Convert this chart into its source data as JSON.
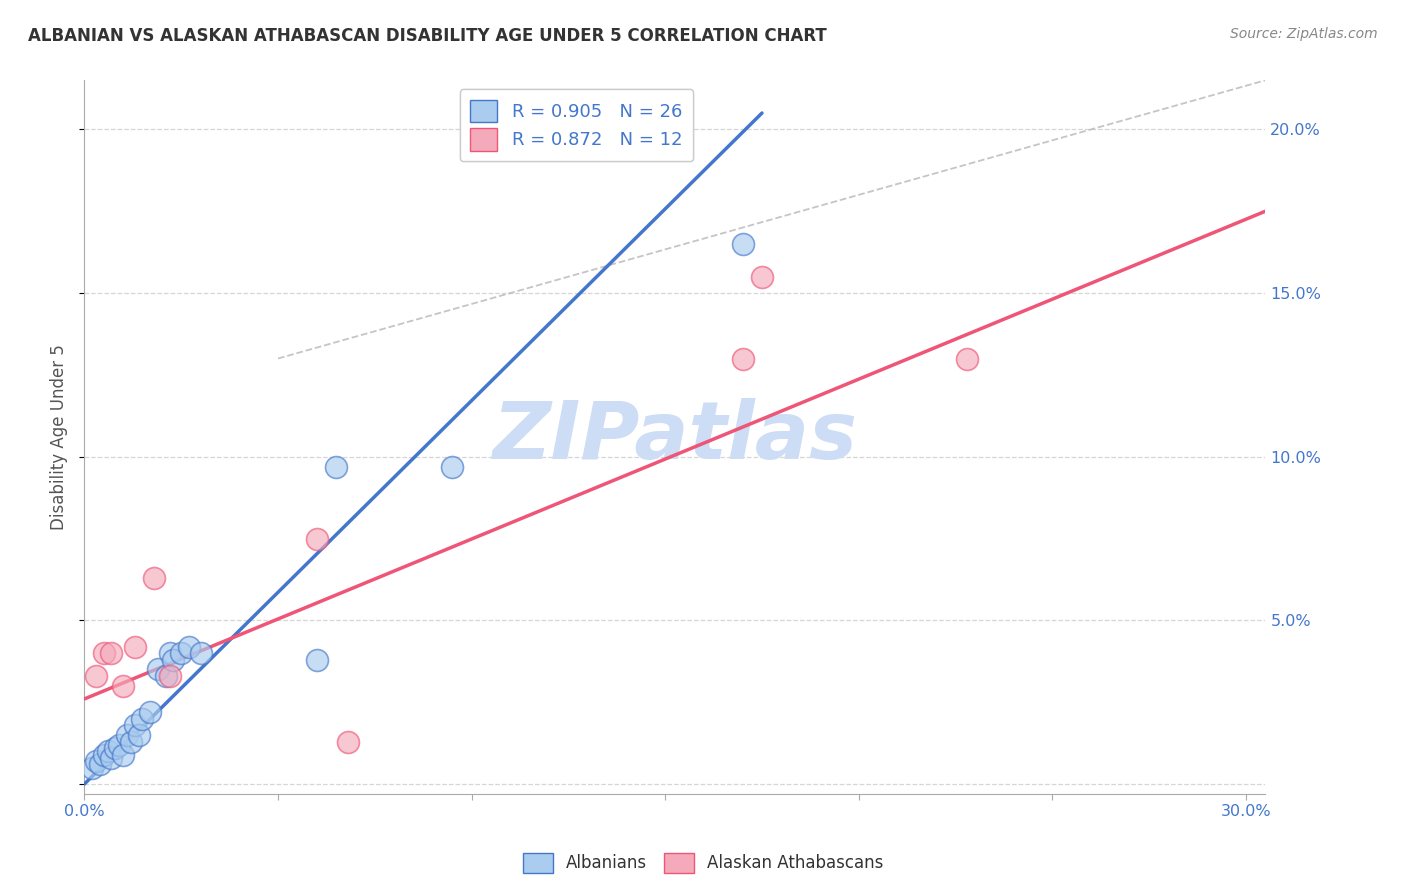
{
  "title": "ALBANIAN VS ALASKAN ATHABASCAN DISABILITY AGE UNDER 5 CORRELATION CHART",
  "source": "Source: ZipAtlas.com",
  "ylabel": "Disability Age Under 5",
  "xlim": [
    0.0,
    0.305
  ],
  "ylim": [
    -0.003,
    0.215
  ],
  "xticks": [
    0.0,
    0.05,
    0.1,
    0.15,
    0.2,
    0.25,
    0.3
  ],
  "yticks": [
    0.0,
    0.05,
    0.1,
    0.15,
    0.2
  ],
  "xtick_labels_ends": [
    "0.0%",
    "30.0%"
  ],
  "ytick_labels": [
    "",
    "5.0%",
    "10.0%",
    "15.0%",
    "20.0%"
  ],
  "blue_R": "0.905",
  "blue_N": "26",
  "pink_R": "0.872",
  "pink_N": "12",
  "blue_fill_color": "#AACCEE",
  "pink_fill_color": "#F4AABB",
  "blue_edge_color": "#4477CC",
  "pink_edge_color": "#EE5577",
  "blue_line_color": "#4477CC",
  "pink_line_color": "#EE5577",
  "watermark": "ZIPatlas",
  "watermark_color": "#CCDDF5",
  "blue_scatter_x": [
    0.002,
    0.003,
    0.004,
    0.005,
    0.006,
    0.007,
    0.008,
    0.009,
    0.01,
    0.011,
    0.012,
    0.013,
    0.014,
    0.015,
    0.017,
    0.019,
    0.021,
    0.022,
    0.023,
    0.025,
    0.027,
    0.03,
    0.06,
    0.065,
    0.095,
    0.17
  ],
  "blue_scatter_y": [
    0.005,
    0.007,
    0.006,
    0.009,
    0.01,
    0.008,
    0.011,
    0.012,
    0.009,
    0.015,
    0.013,
    0.018,
    0.015,
    0.02,
    0.022,
    0.035,
    0.033,
    0.04,
    0.038,
    0.04,
    0.042,
    0.04,
    0.038,
    0.097,
    0.097,
    0.165
  ],
  "pink_scatter_x": [
    0.003,
    0.005,
    0.007,
    0.01,
    0.013,
    0.018,
    0.022,
    0.06,
    0.068,
    0.17,
    0.175,
    0.228
  ],
  "pink_scatter_y": [
    0.033,
    0.04,
    0.04,
    0.03,
    0.042,
    0.063,
    0.033,
    0.075,
    0.013,
    0.13,
    0.155,
    0.13
  ],
  "blue_line_x0": 0.0,
  "blue_line_y0": 0.0,
  "blue_line_x1": 0.175,
  "blue_line_y1": 0.205,
  "pink_line_x0": 0.0,
  "pink_line_y0": 0.026,
  "pink_line_x1": 0.305,
  "pink_line_y1": 0.175,
  "ref_line_x0": 0.05,
  "ref_line_y0": 0.13,
  "ref_line_x1": 0.305,
  "ref_line_y1": 0.215,
  "tick_color": "#4477CC",
  "axis_label_color": "#555555",
  "title_color": "#333333",
  "source_color": "#888888"
}
